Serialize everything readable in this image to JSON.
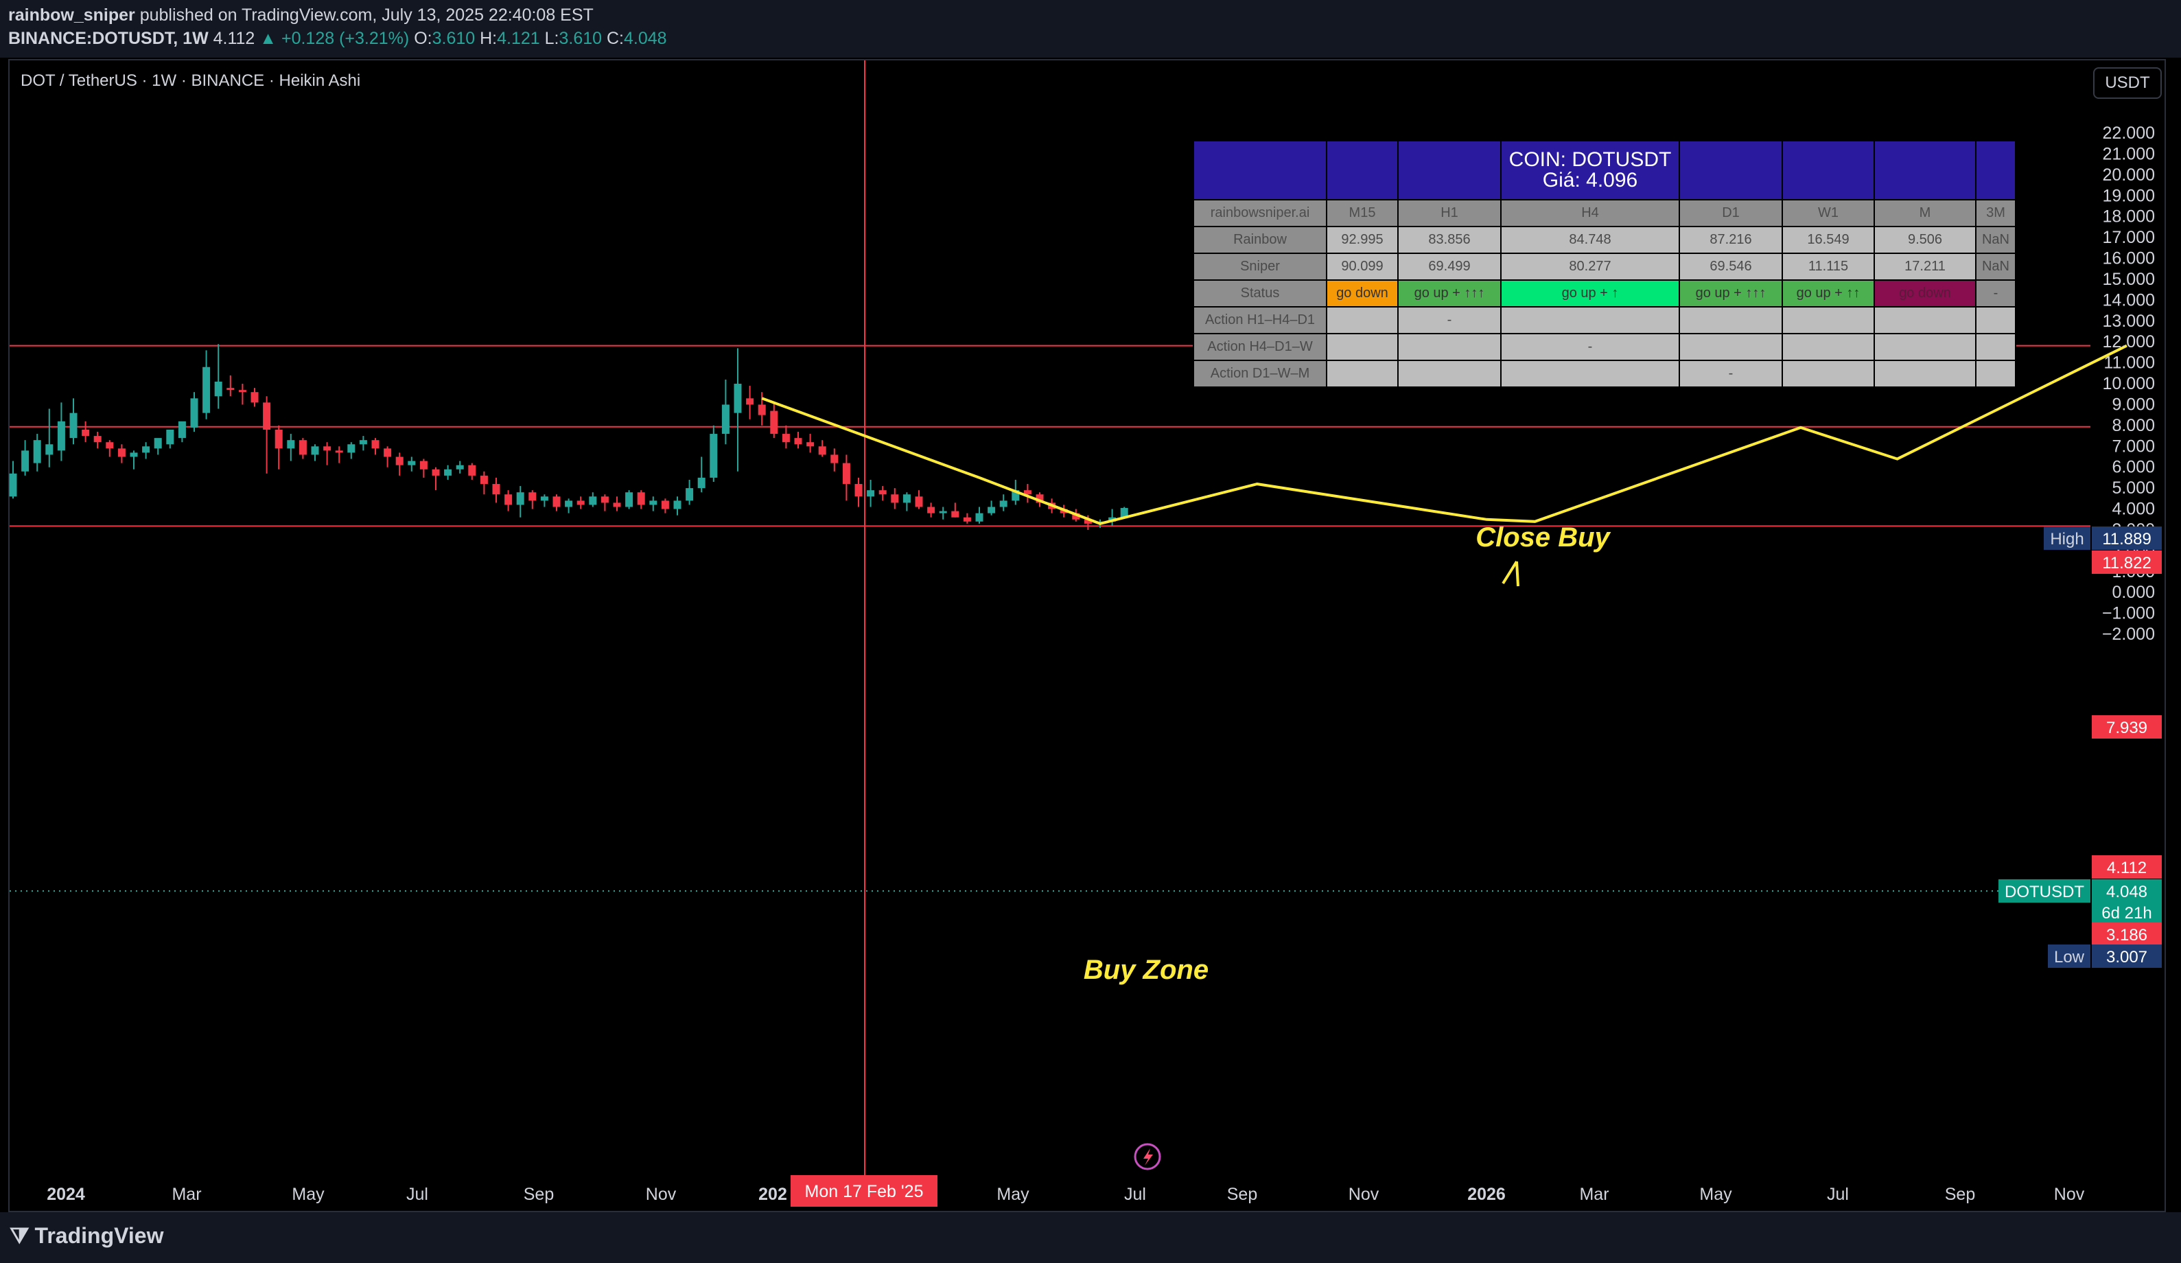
{
  "header": {
    "author": "rainbow_sniper",
    "published": "published on TradingView.com, July 13, 2025 22:40:08 EST",
    "symbol_line": {
      "symbol": "BINANCE:DOTUSDT, 1W",
      "last": "4.112",
      "change": "▲ +0.128 (+3.21%)",
      "o_label": "O:",
      "o": "3.610",
      "h_label": "H:",
      "h": "4.121",
      "l_label": "L:",
      "l": "3.610",
      "c_label": "C:",
      "c": "4.048"
    }
  },
  "legend": {
    "title": "DOT / TetherUS · 1W · BINANCE · Heikin Ashi"
  },
  "currency_button": "USDT",
  "footer": {
    "logo_text": "TradingView"
  },
  "colors": {
    "up": "#26a69a",
    "down": "#f23645",
    "annotation": "#ffeb3b",
    "hline": "#f23645",
    "table_header": "#2a1a9e"
  },
  "price_axis": {
    "ticks": [
      "22.000",
      "21.000",
      "20.000",
      "19.000",
      "18.000",
      "17.000",
      "16.000",
      "15.000",
      "14.000",
      "13.000",
      "12.000",
      "11.000",
      "10.000",
      "9.000",
      "8.000",
      "7.000",
      "6.000",
      "5.000",
      "4.000",
      "3.000",
      "2.000",
      "1.000",
      "0.000",
      "−1.000",
      "−2.000"
    ],
    "labels": {
      "high_tag": "High",
      "high_value": "11.889",
      "line1": "11.822",
      "line2": "7.939",
      "last_high": "4.112",
      "sym_tag": "DOTUSDT",
      "sym_value": "4.048",
      "countdown": "6d 21h",
      "line3": "3.186",
      "low_tag": "Low",
      "low_value": "3.007"
    }
  },
  "time_axis": {
    "ticks": [
      "2024",
      "Mar",
      "May",
      "Jul",
      "Sep",
      "Nov",
      "202",
      "May",
      "Jul",
      "Sep",
      "Nov",
      "2026",
      "Mar",
      "May",
      "Jul",
      "Sep",
      "Nov"
    ],
    "crosshair_label": "Mon 17 Feb '25"
  },
  "annotations": {
    "close_buy": "Close Buy",
    "buy_zone": "Buy Zone"
  },
  "info_table": {
    "title_line1": "COIN: DOTUSDT",
    "title_line2": "Giá: 4.096",
    "columns": [
      "rainbowsniper.ai",
      "M15",
      "H1",
      "H4",
      "D1",
      "W1",
      "M",
      "3M"
    ],
    "rows": [
      [
        "Rainbow",
        "92.995",
        "83.856",
        "84.748",
        "87.216",
        "16.549",
        "9.506",
        "NaN"
      ],
      [
        "Sniper",
        "90.099",
        "69.499",
        "80.277",
        "69.546",
        "11.115",
        "17.211",
        "NaN"
      ],
      [
        "Status",
        "go down",
        "go up + ↑↑↑",
        "go up + ↑",
        "go up + ↑↑↑",
        "go up + ↑↑",
        "go down",
        "-"
      ],
      [
        "Action H1–H4–D1",
        "",
        "-",
        "",
        "",
        "",
        "",
        ""
      ],
      [
        "Action H4–D1–W",
        "",
        "",
        "-",
        "",
        "",
        "",
        ""
      ],
      [
        "Action D1–W–M",
        "",
        "",
        "",
        "-",
        "",
        "",
        ""
      ]
    ]
  },
  "chart_data": {
    "type": "candlestick",
    "title": "DOT / TetherUS · 1W · BINANCE · Heikin Ashi",
    "ylim": [
      -2.4,
      22.8
    ],
    "horizontal_lines": [
      11.822,
      7.939,
      3.186
    ],
    "high": 11.889,
    "low": 3.007,
    "last": 4.048,
    "crosshair_date": "Mon 17 Feb '25",
    "candles": [
      {
        "o": 4.6,
        "h": 6.3,
        "l": 4.5,
        "c": 5.7
      },
      {
        "o": 5.8,
        "h": 7.3,
        "l": 5.6,
        "c": 6.8
      },
      {
        "o": 6.2,
        "h": 7.6,
        "l": 5.8,
        "c": 7.3
      },
      {
        "o": 6.6,
        "h": 8.8,
        "l": 6.0,
        "c": 7.1
      },
      {
        "o": 6.8,
        "h": 9.1,
        "l": 6.3,
        "c": 8.2
      },
      {
        "o": 7.4,
        "h": 9.3,
        "l": 7.1,
        "c": 8.6
      },
      {
        "o": 7.8,
        "h": 8.2,
        "l": 7.2,
        "c": 7.5
      },
      {
        "o": 7.5,
        "h": 7.7,
        "l": 6.9,
        "c": 7.2
      },
      {
        "o": 7.2,
        "h": 7.3,
        "l": 6.5,
        "c": 6.9
      },
      {
        "o": 6.9,
        "h": 7.1,
        "l": 6.2,
        "c": 6.5
      },
      {
        "o": 6.5,
        "h": 6.8,
        "l": 5.9,
        "c": 6.7
      },
      {
        "o": 6.7,
        "h": 7.2,
        "l": 6.4,
        "c": 7.0
      },
      {
        "o": 6.9,
        "h": 7.3,
        "l": 6.6,
        "c": 7.4
      },
      {
        "o": 7.1,
        "h": 7.7,
        "l": 6.9,
        "c": 7.8
      },
      {
        "o": 7.4,
        "h": 8.1,
        "l": 7.2,
        "c": 8.2
      },
      {
        "o": 7.9,
        "h": 9.6,
        "l": 7.7,
        "c": 9.3
      },
      {
        "o": 8.6,
        "h": 11.6,
        "l": 8.3,
        "c": 10.8
      },
      {
        "o": 9.4,
        "h": 11.9,
        "l": 8.8,
        "c": 10.1
      },
      {
        "o": 9.8,
        "h": 10.4,
        "l": 9.4,
        "c": 9.7
      },
      {
        "o": 9.7,
        "h": 10.0,
        "l": 9.0,
        "c": 9.6
      },
      {
        "o": 9.6,
        "h": 9.8,
        "l": 8.9,
        "c": 9.1
      },
      {
        "o": 9.1,
        "h": 9.4,
        "l": 5.7,
        "c": 7.8
      },
      {
        "o": 7.8,
        "h": 8.0,
        "l": 5.9,
        "c": 6.9
      },
      {
        "o": 6.9,
        "h": 7.6,
        "l": 6.3,
        "c": 7.3
      },
      {
        "o": 7.3,
        "h": 7.4,
        "l": 6.4,
        "c": 6.6
      },
      {
        "o": 6.6,
        "h": 7.1,
        "l": 6.3,
        "c": 7.0
      },
      {
        "o": 7.0,
        "h": 7.2,
        "l": 6.1,
        "c": 6.8
      },
      {
        "o": 6.8,
        "h": 7.0,
        "l": 6.2,
        "c": 6.7
      },
      {
        "o": 6.7,
        "h": 7.2,
        "l": 6.4,
        "c": 7.1
      },
      {
        "o": 7.1,
        "h": 7.5,
        "l": 6.8,
        "c": 7.3
      },
      {
        "o": 7.3,
        "h": 7.4,
        "l": 6.6,
        "c": 6.9
      },
      {
        "o": 6.9,
        "h": 7.0,
        "l": 6.0,
        "c": 6.5
      },
      {
        "o": 6.5,
        "h": 6.7,
        "l": 5.6,
        "c": 6.1
      },
      {
        "o": 6.1,
        "h": 6.5,
        "l": 5.8,
        "c": 6.3
      },
      {
        "o": 6.3,
        "h": 6.4,
        "l": 5.5,
        "c": 5.9
      },
      {
        "o": 5.9,
        "h": 6.0,
        "l": 4.9,
        "c": 5.6
      },
      {
        "o": 5.6,
        "h": 6.1,
        "l": 5.4,
        "c": 5.9
      },
      {
        "o": 5.9,
        "h": 6.3,
        "l": 5.7,
        "c": 6.1
      },
      {
        "o": 6.1,
        "h": 6.2,
        "l": 5.4,
        "c": 5.6
      },
      {
        "o": 5.6,
        "h": 5.8,
        "l": 4.7,
        "c": 5.2
      },
      {
        "o": 5.2,
        "h": 5.5,
        "l": 4.3,
        "c": 4.7
      },
      {
        "o": 4.7,
        "h": 4.9,
        "l": 3.9,
        "c": 4.2
      },
      {
        "o": 4.2,
        "h": 5.1,
        "l": 3.6,
        "c": 4.8
      },
      {
        "o": 4.8,
        "h": 4.9,
        "l": 4.0,
        "c": 4.4
      },
      {
        "o": 4.4,
        "h": 4.7,
        "l": 4.1,
        "c": 4.6
      },
      {
        "o": 4.6,
        "h": 4.7,
        "l": 3.9,
        "c": 4.1
      },
      {
        "o": 4.1,
        "h": 4.5,
        "l": 3.8,
        "c": 4.4
      },
      {
        "o": 4.4,
        "h": 4.6,
        "l": 4.0,
        "c": 4.2
      },
      {
        "o": 4.2,
        "h": 4.8,
        "l": 4.1,
        "c": 4.6
      },
      {
        "o": 4.6,
        "h": 4.7,
        "l": 3.9,
        "c": 4.3
      },
      {
        "o": 4.3,
        "h": 4.6,
        "l": 3.9,
        "c": 4.1
      },
      {
        "o": 4.1,
        "h": 4.9,
        "l": 4.0,
        "c": 4.8
      },
      {
        "o": 4.8,
        "h": 4.9,
        "l": 4.0,
        "c": 4.2
      },
      {
        "o": 4.2,
        "h": 4.6,
        "l": 3.9,
        "c": 4.4
      },
      {
        "o": 4.4,
        "h": 4.5,
        "l": 3.8,
        "c": 4.0
      },
      {
        "o": 4.0,
        "h": 4.6,
        "l": 3.7,
        "c": 4.4
      },
      {
        "o": 4.4,
        "h": 5.4,
        "l": 4.2,
        "c": 5.0
      },
      {
        "o": 5.0,
        "h": 6.5,
        "l": 4.8,
        "c": 5.5
      },
      {
        "o": 5.5,
        "h": 8.0,
        "l": 5.3,
        "c": 7.6
      },
      {
        "o": 7.6,
        "h": 10.2,
        "l": 7.1,
        "c": 9.0
      },
      {
        "o": 8.6,
        "h": 11.7,
        "l": 5.8,
        "c": 10.0
      },
      {
        "o": 9.3,
        "h": 9.9,
        "l": 8.3,
        "c": 9.0
      },
      {
        "o": 9.0,
        "h": 9.6,
        "l": 8.0,
        "c": 8.5
      },
      {
        "o": 8.7,
        "h": 9.1,
        "l": 7.4,
        "c": 7.6
      },
      {
        "o": 7.6,
        "h": 8.0,
        "l": 6.9,
        "c": 7.2
      },
      {
        "o": 7.4,
        "h": 7.7,
        "l": 6.9,
        "c": 7.1
      },
      {
        "o": 7.2,
        "h": 7.6,
        "l": 6.7,
        "c": 7.0
      },
      {
        "o": 7.0,
        "h": 7.3,
        "l": 6.5,
        "c": 6.6
      },
      {
        "o": 6.6,
        "h": 6.9,
        "l": 5.8,
        "c": 6.2
      },
      {
        "o": 6.2,
        "h": 6.6,
        "l": 4.4,
        "c": 5.2
      },
      {
        "o": 5.2,
        "h": 5.5,
        "l": 4.1,
        "c": 4.6
      },
      {
        "o": 4.6,
        "h": 5.4,
        "l": 4.1,
        "c": 4.9
      },
      {
        "o": 4.9,
        "h": 5.1,
        "l": 4.4,
        "c": 4.7
      },
      {
        "o": 4.7,
        "h": 5.0,
        "l": 4.0,
        "c": 4.3
      },
      {
        "o": 4.3,
        "h": 4.8,
        "l": 3.9,
        "c": 4.7
      },
      {
        "o": 4.6,
        "h": 4.9,
        "l": 4.0,
        "c": 4.1
      },
      {
        "o": 4.1,
        "h": 4.3,
        "l": 3.6,
        "c": 3.8
      },
      {
        "o": 3.8,
        "h": 4.1,
        "l": 3.5,
        "c": 3.9
      },
      {
        "o": 3.9,
        "h": 4.3,
        "l": 3.6,
        "c": 3.6
      },
      {
        "o": 3.6,
        "h": 3.8,
        "l": 3.3,
        "c": 3.4
      },
      {
        "o": 3.4,
        "h": 4.1,
        "l": 3.3,
        "c": 3.8
      },
      {
        "o": 3.8,
        "h": 4.4,
        "l": 3.7,
        "c": 4.1
      },
      {
        "o": 4.1,
        "h": 4.7,
        "l": 3.9,
        "c": 4.4
      },
      {
        "o": 4.4,
        "h": 5.4,
        "l": 4.2,
        "c": 4.9
      },
      {
        "o": 4.9,
        "h": 5.2,
        "l": 4.3,
        "c": 4.7
      },
      {
        "o": 4.7,
        "h": 4.8,
        "l": 4.1,
        "c": 4.3
      },
      {
        "o": 4.3,
        "h": 4.5,
        "l": 3.8,
        "c": 4.0
      },
      {
        "o": 4.0,
        "h": 4.2,
        "l": 3.6,
        "c": 3.8
      },
      {
        "o": 3.8,
        "h": 4.0,
        "l": 3.4,
        "c": 3.5
      },
      {
        "o": 3.5,
        "h": 3.7,
        "l": 3.0,
        "c": 3.3
      },
      {
        "o": 3.3,
        "h": 3.5,
        "l": 3.1,
        "c": 3.4
      },
      {
        "o": 3.4,
        "h": 4.0,
        "l": 3.2,
        "c": 3.6
      },
      {
        "o": 3.6,
        "h": 4.1,
        "l": 3.6,
        "c": 4.05
      }
    ],
    "projection_path": [
      [
        0,
        9.3
      ],
      [
        18,
        5.5
      ],
      [
        28,
        3.3
      ],
      [
        41,
        5.2
      ],
      [
        60,
        3.5
      ],
      [
        64,
        3.4
      ],
      [
        86,
        7.9
      ],
      [
        94,
        6.4
      ],
      [
        113,
        11.822
      ]
    ]
  }
}
